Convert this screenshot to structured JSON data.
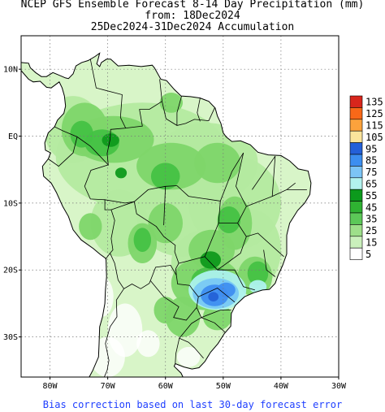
{
  "title": {
    "line1": "NCEP GFS Ensemble Forecast 8-14 Day Precipitation (mm)",
    "line2": "from: 18Dec2024",
    "line3": "25Dec2024-31Dec2024 Accumulation"
  },
  "map": {
    "lon_range": [
      -85,
      -30
    ],
    "lat_range": [
      -36,
      15
    ],
    "y_ticks": [
      {
        "lat": 10,
        "label": "10N"
      },
      {
        "lat": 0,
        "label": "EQ"
      },
      {
        "lat": -10,
        "label": "10S"
      },
      {
        "lat": -20,
        "label": "20S"
      },
      {
        "lat": -30,
        "label": "30S"
      }
    ],
    "x_ticks": [
      {
        "lon": -80,
        "label": "80W"
      },
      {
        "lon": -70,
        "label": "70W"
      },
      {
        "lon": -60,
        "label": "60W"
      },
      {
        "lon": -50,
        "label": "50W"
      },
      {
        "lon": -40,
        "label": "40W"
      },
      {
        "lon": -30,
        "label": "30W"
      }
    ],
    "grid": true,
    "field_colors": {
      "light": "#d8f5c8",
      "pale": "#b4eaa0",
      "mid": "#7ed66a",
      "green": "#44c244",
      "dark": "#0f9a1c",
      "cyan": "#aef2ee",
      "sky": "#78c8f4",
      "blue": "#3f8ef0",
      "deep": "#2462d6"
    }
  },
  "legend": {
    "levels": [
      {
        "label": "135",
        "color": "#d8261c"
      },
      {
        "label": "125",
        "color": "#f86818"
      },
      {
        "label": "115",
        "color": "#fca23c"
      },
      {
        "label": "105",
        "color": "#fbe49c"
      },
      {
        "label": "95",
        "color": "#2460d8"
      },
      {
        "label": "85",
        "color": "#3c8ef0"
      },
      {
        "label": "75",
        "color": "#7cc4f6"
      },
      {
        "label": "65",
        "color": "#b2f2ee"
      },
      {
        "label": "55",
        "color": "#0c9a1c"
      },
      {
        "label": "45",
        "color": "#2fb232"
      },
      {
        "label": "35",
        "color": "#5cc858"
      },
      {
        "label": "25",
        "color": "#9edf8a"
      },
      {
        "label": "15",
        "color": "#caf0bc"
      },
      {
        "label": "5",
        "color": "#ffffff"
      }
    ]
  },
  "footer": "Bias correction based on last 30-day forecast error"
}
